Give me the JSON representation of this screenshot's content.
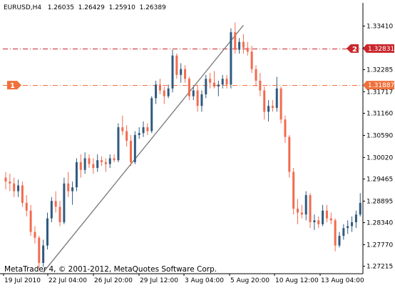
{
  "header": {
    "symbol": "EURUSD,H4",
    "open": "1.26035",
    "high": "1.26429",
    "low": "1.25910",
    "close": "1.26389"
  },
  "footer": {
    "copyright": "MetaTrader 4, © 2001-2012, MetaQuotes Software Corp."
  },
  "colors": {
    "bull": "#2F5A7F",
    "bear": "#F26B4F",
    "line_level": "#C8262B",
    "line_level_1": "#F0703A",
    "trendline": "#808080",
    "axis": "#000000"
  },
  "chart_data": {
    "type": "candlestick",
    "symbol": "EURUSD",
    "timeframe": "H4",
    "y_ticks": [
      "1.33410",
      "1.32855",
      "1.32285",
      "1.31717",
      "1.31160",
      "1.30590",
      "1.30020",
      "1.29465",
      "1.28895",
      "1.28340",
      "1.27770",
      "1.27215"
    ],
    "y_range": [
      1.2706,
      1.3375
    ],
    "x_ticks": [
      "19 Jul 2010",
      "22 Jul 04:00",
      "26 Jul 20:00",
      "29 Jul 12:00",
      "3 Aug 04:00",
      "5 Aug 20:00",
      "10 Aug 12:00",
      "13 Aug 04:00"
    ],
    "levels": [
      {
        "label": "2",
        "value": 1.32831,
        "display": "1.32831"
      },
      {
        "label": "1",
        "value": 1.31887,
        "display": "1.31887"
      }
    ],
    "trendline": {
      "start": {
        "bar": 9,
        "price": 1.2706
      },
      "end": {
        "bar": 57,
        "price": 1.3343
      }
    },
    "candles": [
      {
        "o": 1.295,
        "h": 1.2965,
        "l": 1.292,
        "c": 1.294
      },
      {
        "o": 1.294,
        "h": 1.296,
        "l": 1.2915,
        "c": 1.2935
      },
      {
        "o": 1.2935,
        "h": 1.295,
        "l": 1.29,
        "c": 1.2915
      },
      {
        "o": 1.2915,
        "h": 1.2945,
        "l": 1.29,
        "c": 1.293
      },
      {
        "o": 1.293,
        "h": 1.294,
        "l": 1.2875,
        "c": 1.2885
      },
      {
        "o": 1.2885,
        "h": 1.2905,
        "l": 1.285,
        "c": 1.2865
      },
      {
        "o": 1.2865,
        "h": 1.288,
        "l": 1.28,
        "c": 1.281
      },
      {
        "o": 1.281,
        "h": 1.2825,
        "l": 1.278,
        "c": 1.2795
      },
      {
        "o": 1.2795,
        "h": 1.28,
        "l": 1.2715,
        "c": 1.273
      },
      {
        "o": 1.273,
        "h": 1.279,
        "l": 1.272,
        "c": 1.2775
      },
      {
        "o": 1.2775,
        "h": 1.286,
        "l": 1.2765,
        "c": 1.2845
      },
      {
        "o": 1.2845,
        "h": 1.29,
        "l": 1.2835,
        "c": 1.289
      },
      {
        "o": 1.289,
        "h": 1.2915,
        "l": 1.286,
        "c": 1.2875
      },
      {
        "o": 1.2875,
        "h": 1.289,
        "l": 1.2825,
        "c": 1.2835
      },
      {
        "o": 1.2835,
        "h": 1.295,
        "l": 1.283,
        "c": 1.2935
      },
      {
        "o": 1.2935,
        "h": 1.2965,
        "l": 1.29,
        "c": 1.2915
      },
      {
        "o": 1.2915,
        "h": 1.294,
        "l": 1.288,
        "c": 1.2925
      },
      {
        "o": 1.2925,
        "h": 1.3,
        "l": 1.2915,
        "c": 1.299
      },
      {
        "o": 1.299,
        "h": 1.301,
        "l": 1.295,
        "c": 1.297
      },
      {
        "o": 1.297,
        "h": 1.3015,
        "l": 1.296,
        "c": 1.3
      },
      {
        "o": 1.3,
        "h": 1.301,
        "l": 1.2975,
        "c": 1.2985
      },
      {
        "o": 1.2985,
        "h": 1.3,
        "l": 1.296,
        "c": 1.2975
      },
      {
        "o": 1.2975,
        "h": 1.301,
        "l": 1.2965,
        "c": 1.2995
      },
      {
        "o": 1.2995,
        "h": 1.3005,
        "l": 1.298,
        "c": 1.299
      },
      {
        "o": 1.299,
        "h": 1.3,
        "l": 1.2965,
        "c": 1.2985
      },
      {
        "o": 1.2985,
        "h": 1.301,
        "l": 1.2975,
        "c": 1.3
      },
      {
        "o": 1.3,
        "h": 1.301,
        "l": 1.299,
        "c": 1.2995
      },
      {
        "o": 1.2995,
        "h": 1.309,
        "l": 1.299,
        "c": 1.308
      },
      {
        "o": 1.308,
        "h": 1.311,
        "l": 1.306,
        "c": 1.307
      },
      {
        "o": 1.307,
        "h": 1.3085,
        "l": 1.303,
        "c": 1.3045
      },
      {
        "o": 1.3045,
        "h": 1.306,
        "l": 1.298,
        "c": 1.299
      },
      {
        "o": 1.299,
        "h": 1.307,
        "l": 1.2985,
        "c": 1.306
      },
      {
        "o": 1.306,
        "h": 1.308,
        "l": 1.305,
        "c": 1.3065
      },
      {
        "o": 1.3065,
        "h": 1.3095,
        "l": 1.3055,
        "c": 1.308
      },
      {
        "o": 1.308,
        "h": 1.309,
        "l": 1.306,
        "c": 1.307
      },
      {
        "o": 1.307,
        "h": 1.316,
        "l": 1.3065,
        "c": 1.3155
      },
      {
        "o": 1.3155,
        "h": 1.32,
        "l": 1.314,
        "c": 1.319
      },
      {
        "o": 1.319,
        "h": 1.3205,
        "l": 1.3165,
        "c": 1.3175
      },
      {
        "o": 1.3175,
        "h": 1.3185,
        "l": 1.314,
        "c": 1.316
      },
      {
        "o": 1.316,
        "h": 1.319,
        "l": 1.3155,
        "c": 1.318
      },
      {
        "o": 1.318,
        "h": 1.328,
        "l": 1.317,
        "c": 1.3265
      },
      {
        "o": 1.3265,
        "h": 1.327,
        "l": 1.3205,
        "c": 1.3215
      },
      {
        "o": 1.3215,
        "h": 1.3245,
        "l": 1.3195,
        "c": 1.323
      },
      {
        "o": 1.323,
        "h": 1.324,
        "l": 1.3195,
        "c": 1.3205
      },
      {
        "o": 1.3205,
        "h": 1.321,
        "l": 1.315,
        "c": 1.316
      },
      {
        "o": 1.316,
        "h": 1.3185,
        "l": 1.315,
        "c": 1.3175
      },
      {
        "o": 1.3175,
        "h": 1.319,
        "l": 1.312,
        "c": 1.3135
      },
      {
        "o": 1.3135,
        "h": 1.3175,
        "l": 1.312,
        "c": 1.3165
      },
      {
        "o": 1.3165,
        "h": 1.3215,
        "l": 1.3155,
        "c": 1.3205
      },
      {
        "o": 1.3205,
        "h": 1.322,
        "l": 1.318,
        "c": 1.3195
      },
      {
        "o": 1.3195,
        "h": 1.3225,
        "l": 1.318,
        "c": 1.3185
      },
      {
        "o": 1.3185,
        "h": 1.32,
        "l": 1.316,
        "c": 1.319
      },
      {
        "o": 1.319,
        "h": 1.3215,
        "l": 1.318,
        "c": 1.3205
      },
      {
        "o": 1.3205,
        "h": 1.3215,
        "l": 1.318,
        "c": 1.319
      },
      {
        "o": 1.319,
        "h": 1.3335,
        "l": 1.318,
        "c": 1.3325
      },
      {
        "o": 1.3325,
        "h": 1.335,
        "l": 1.327,
        "c": 1.328
      },
      {
        "o": 1.328,
        "h": 1.331,
        "l": 1.327,
        "c": 1.33
      },
      {
        "o": 1.33,
        "h": 1.332,
        "l": 1.327,
        "c": 1.3285
      },
      {
        "o": 1.3285,
        "h": 1.33,
        "l": 1.3265,
        "c": 1.3275
      },
      {
        "o": 1.3275,
        "h": 1.329,
        "l": 1.322,
        "c": 1.323
      },
      {
        "o": 1.323,
        "h": 1.324,
        "l": 1.3185,
        "c": 1.32
      },
      {
        "o": 1.32,
        "h": 1.322,
        "l": 1.316,
        "c": 1.3175
      },
      {
        "o": 1.3175,
        "h": 1.3185,
        "l": 1.31,
        "c": 1.312
      },
      {
        "o": 1.312,
        "h": 1.315,
        "l": 1.3095,
        "c": 1.3135
      },
      {
        "o": 1.3135,
        "h": 1.315,
        "l": 1.312,
        "c": 1.313
      },
      {
        "o": 1.313,
        "h": 1.321,
        "l": 1.312,
        "c": 1.318
      },
      {
        "o": 1.318,
        "h": 1.3185,
        "l": 1.309,
        "c": 1.31
      },
      {
        "o": 1.31,
        "h": 1.311,
        "l": 1.304,
        "c": 1.3055
      },
      {
        "o": 1.3055,
        "h": 1.306,
        "l": 1.295,
        "c": 1.2965
      },
      {
        "o": 1.2965,
        "h": 1.2975,
        "l": 1.2855,
        "c": 1.287
      },
      {
        "o": 1.287,
        "h": 1.2895,
        "l": 1.283,
        "c": 1.286
      },
      {
        "o": 1.286,
        "h": 1.288,
        "l": 1.2845,
        "c": 1.2855
      },
      {
        "o": 1.2855,
        "h": 1.2915,
        "l": 1.284,
        "c": 1.2905
      },
      {
        "o": 1.2905,
        "h": 1.291,
        "l": 1.282,
        "c": 1.2835
      },
      {
        "o": 1.2835,
        "h": 1.2855,
        "l": 1.2815,
        "c": 1.284
      },
      {
        "o": 1.284,
        "h": 1.285,
        "l": 1.282,
        "c": 1.283
      },
      {
        "o": 1.283,
        "h": 1.288,
        "l": 1.2825,
        "c": 1.2865
      },
      {
        "o": 1.2865,
        "h": 1.288,
        "l": 1.2835,
        "c": 1.2845
      },
      {
        "o": 1.2845,
        "h": 1.286,
        "l": 1.283,
        "c": 1.284
      },
      {
        "o": 1.284,
        "h": 1.2845,
        "l": 1.276,
        "c": 1.2775
      },
      {
        "o": 1.2775,
        "h": 1.281,
        "l": 1.277,
        "c": 1.28
      },
      {
        "o": 1.28,
        "h": 1.283,
        "l": 1.279,
        "c": 1.282
      },
      {
        "o": 1.282,
        "h": 1.284,
        "l": 1.2805,
        "c": 1.2825
      },
      {
        "o": 1.2825,
        "h": 1.285,
        "l": 1.281,
        "c": 1.2835
      },
      {
        "o": 1.2835,
        "h": 1.2865,
        "l": 1.282,
        "c": 1.2855
      },
      {
        "o": 1.2855,
        "h": 1.291,
        "l": 1.285,
        "c": 1.2885
      }
    ]
  }
}
